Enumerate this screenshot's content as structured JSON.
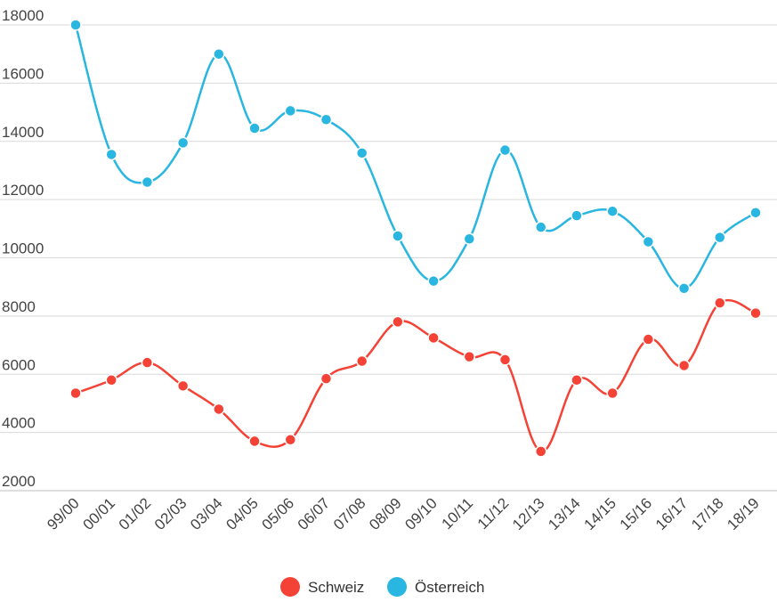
{
  "chart_data": {
    "type": "line",
    "categories": [
      "99/00",
      "00/01",
      "01/02",
      "02/03",
      "03/04",
      "04/05",
      "05/06",
      "06/07",
      "07/08",
      "08/09",
      "09/10",
      "10/11",
      "11/12",
      "12/13",
      "13/14",
      "14/15",
      "15/16",
      "16/17",
      "17/18",
      "18/19"
    ],
    "series": [
      {
        "name": "Schweiz",
        "color": "#f44336",
        "values": [
          5350,
          5800,
          6400,
          5600,
          4800,
          3700,
          3750,
          5850,
          6450,
          7800,
          7250,
          6600,
          6500,
          3350,
          5800,
          5350,
          7200,
          6300,
          8450,
          8100
        ]
      },
      {
        "name": "Österreich",
        "color": "#29b6e0",
        "values": [
          18000,
          13550,
          12600,
          13950,
          17000,
          14450,
          15050,
          14750,
          13600,
          10750,
          9200,
          10650,
          13700,
          11050,
          11450,
          11600,
          10550,
          8950,
          10700,
          11550
        ]
      }
    ],
    "yticks": [
      "18000",
      "16000",
      "14000",
      "12000",
      "10000",
      "8000",
      "6000",
      "4000",
      "2000"
    ],
    "ylim": [
      2000,
      18000
    ],
    "grid": true,
    "legend": "bottom-center",
    "curve": "smooth"
  }
}
